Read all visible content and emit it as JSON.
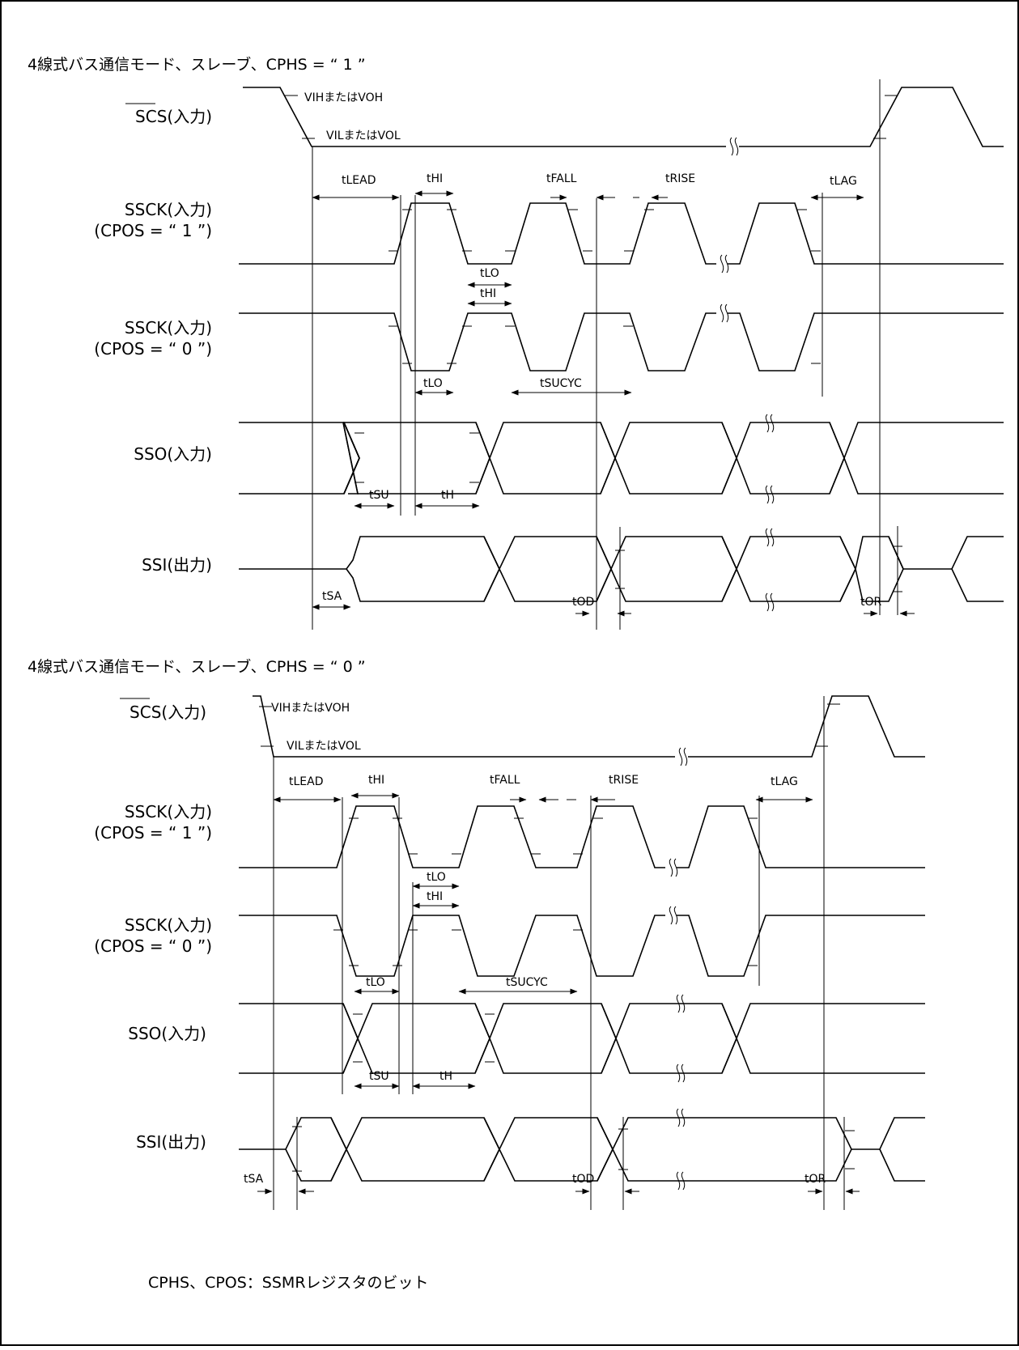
{
  "diagrams": [
    {
      "title": "4線式バス通信モード、スレーブ、CPHS = “ 1 ”",
      "signals": {
        "scs": "SCS(入力)",
        "ssck1_line1": "SSCK(入力)",
        "ssck1_line2": "(CPOS = “ 1 ”)",
        "ssck0_line1": "SSCK(入力)",
        "ssck0_line2": "(CPOS = “ 0 ”)",
        "sso": "SSO(入力)",
        "ssi": "SSI(出力)"
      },
      "levels": {
        "high": "VIHまたはVOH",
        "low": "VILまたはVOL"
      },
      "timing": {
        "tlead": "tLEAD",
        "thi": "tHI",
        "tfall": "tFALL",
        "trise": "tRISE",
        "tlag": "tLAG",
        "tlo": "tLO",
        "thi2": "tHI",
        "tlo2": "tLO",
        "tsucyc": "tSUCYC",
        "tsu": "tSU",
        "th": "tH",
        "tsa": "tSA",
        "tod": "tOD",
        "tor": "tOR"
      }
    },
    {
      "title": "4線式バス通信モード、スレーブ、CPHS = “ 0 ”",
      "signals": {
        "scs": "SCS(入力)",
        "ssck1_line1": "SSCK(入力)",
        "ssck1_line2": "(CPOS = “ 1 ”)",
        "ssck0_line1": "SSCK(入力)",
        "ssck0_line2": "(CPOS = “ 0 ”)",
        "sso": "SSO(入力)",
        "ssi": "SSI(出力)"
      },
      "levels": {
        "high": "VIHまたはVOH",
        "low": "VILまたはVOL"
      },
      "timing": {
        "tlead": "tLEAD",
        "thi": "tHI",
        "tfall": "tFALL",
        "trise": "tRISE",
        "tlag": "tLAG",
        "tlo": "tLO",
        "thi2": "tHI",
        "tlo2": "tLO",
        "tsucyc": "tSUCYC",
        "tsu": "tSU",
        "th": "tH",
        "tsa": "tSA",
        "tod": "tOD",
        "tor": "tOR"
      }
    }
  ],
  "footnote": "CPHS、CPOS：SSMRレジスタのビット"
}
